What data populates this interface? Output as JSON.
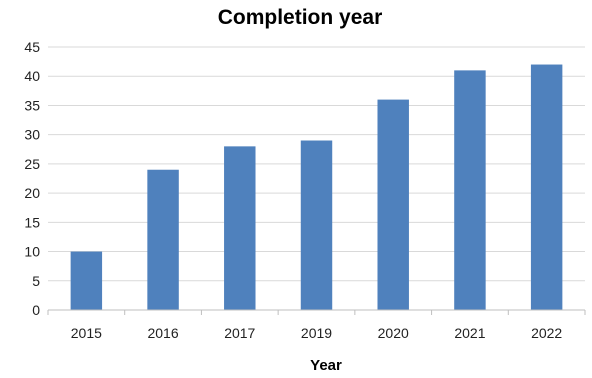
{
  "chart_data": {
    "type": "bar",
    "title": "Completion year",
    "xlabel": "Year",
    "ylabel": "",
    "categories": [
      "2015",
      "2016",
      "2017",
      "2019",
      "2020",
      "2021",
      "2022"
    ],
    "values": [
      10,
      24,
      28,
      29,
      36,
      41,
      42
    ],
    "ylim": [
      0,
      45
    ],
    "yticks": [
      0,
      5,
      10,
      15,
      20,
      25,
      30,
      35,
      40,
      45
    ],
    "grid": true,
    "legend": "none",
    "bar_color": "#4f81bd"
  }
}
